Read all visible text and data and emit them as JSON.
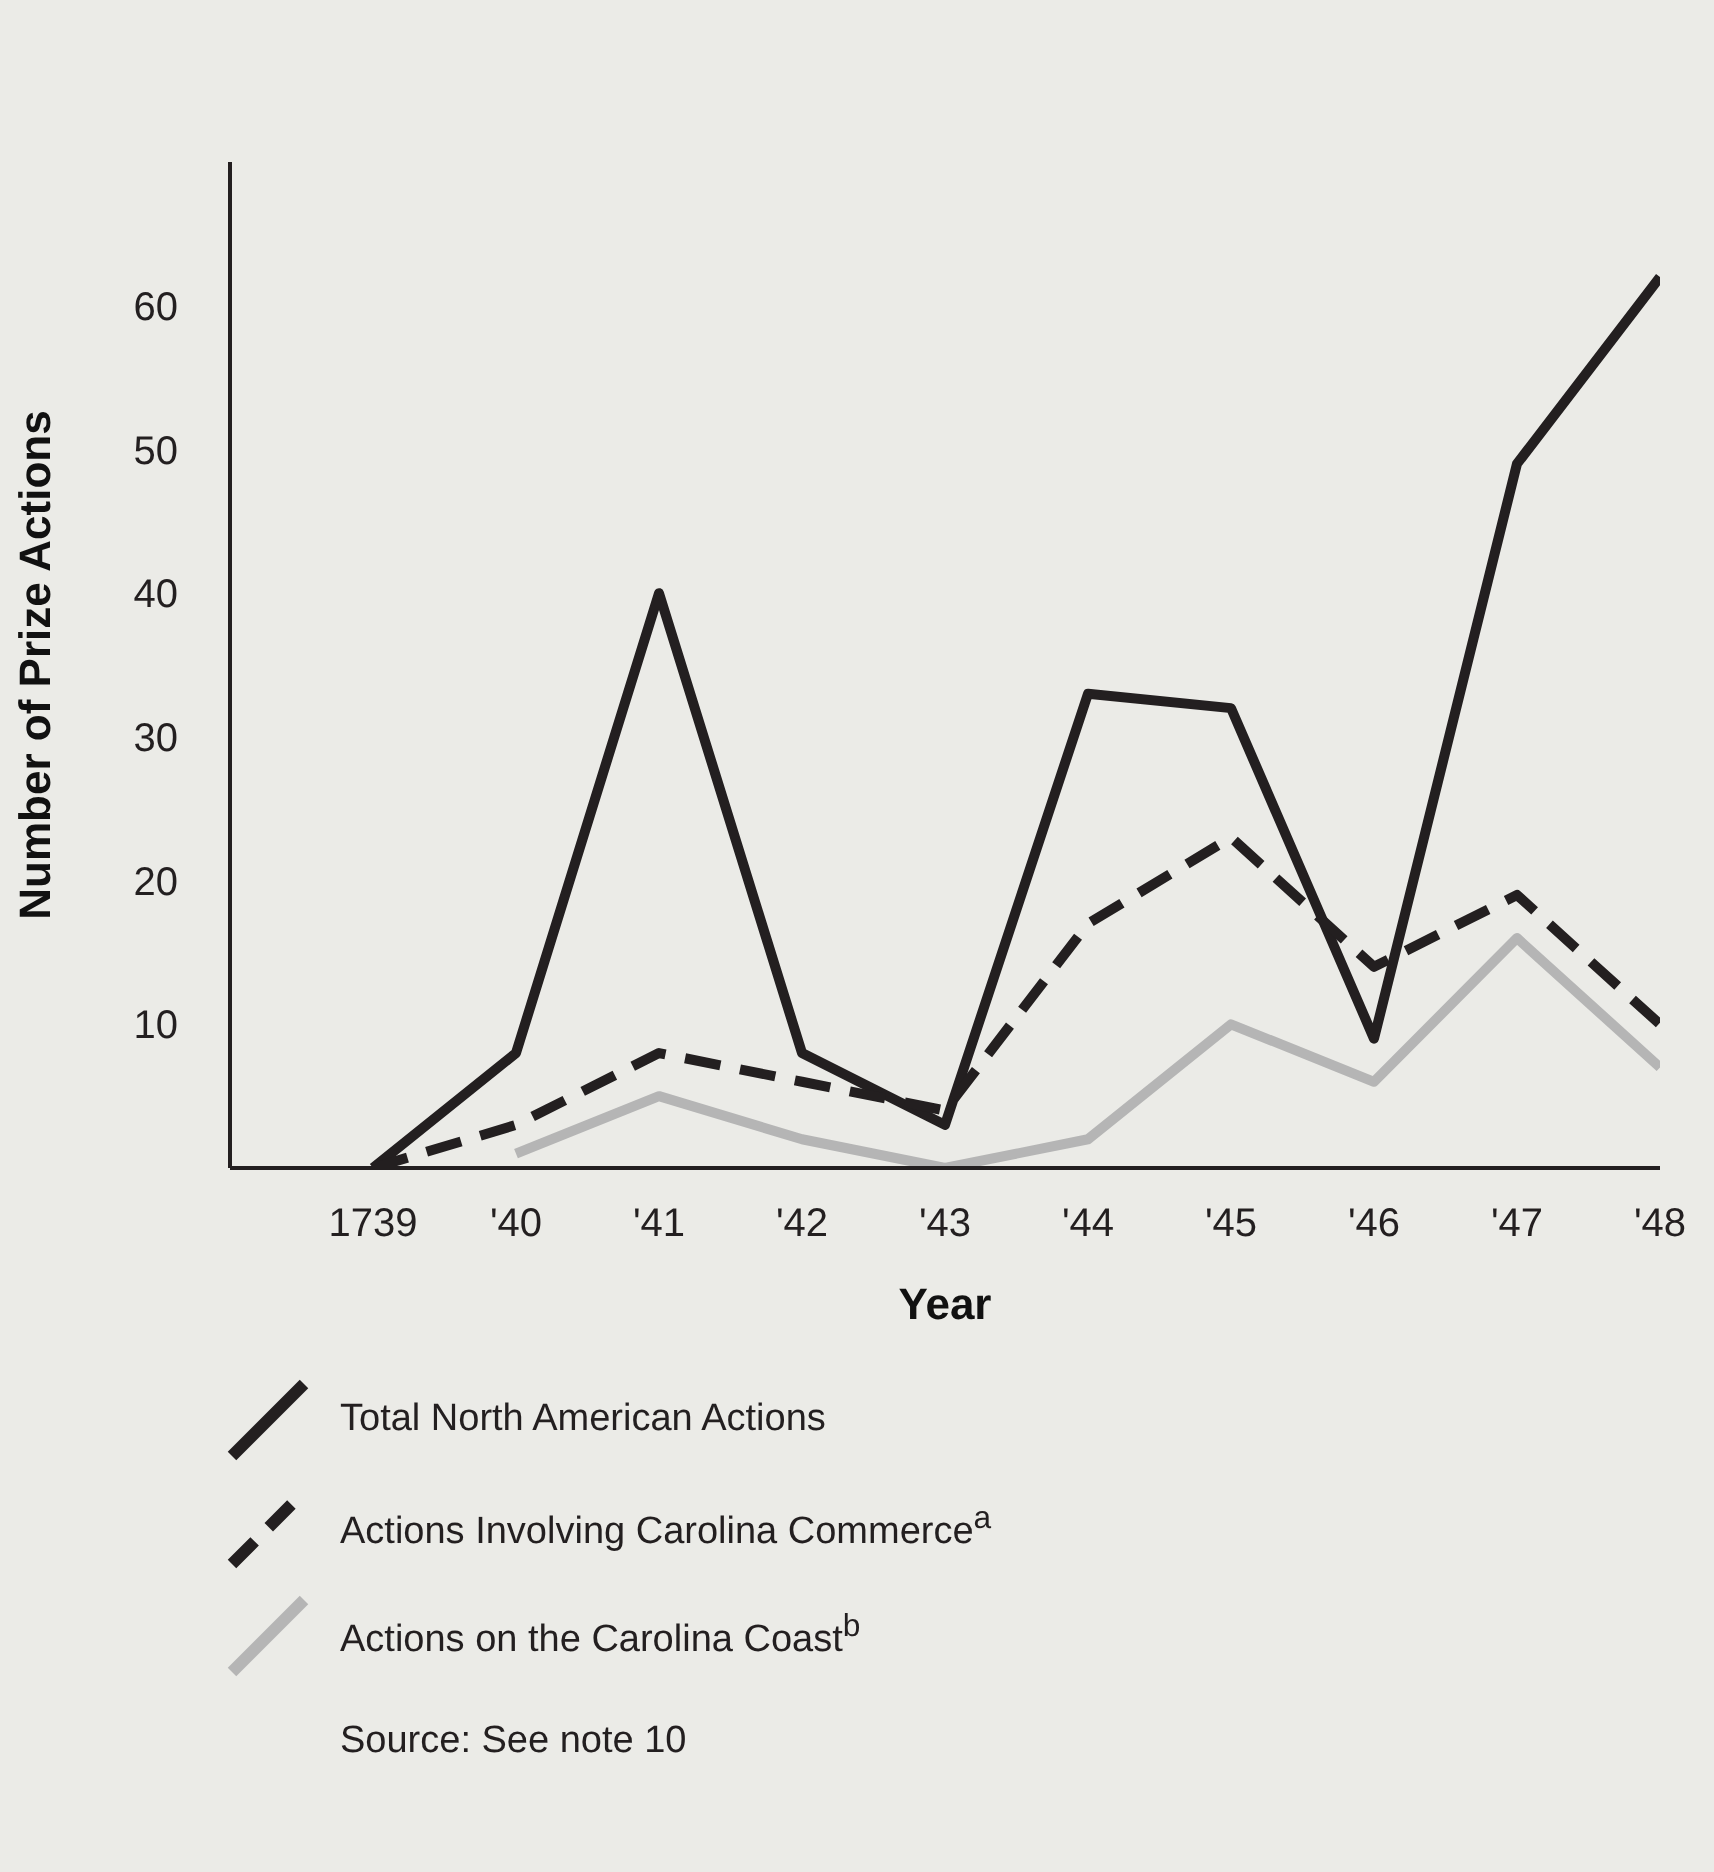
{
  "chart_data": {
    "type": "line",
    "xlabel": "Year",
    "ylabel": "Number of Prize Actions",
    "categories": [
      "1739",
      "'40",
      "'41",
      "'42",
      "'43",
      "'44",
      "'45",
      "'46",
      "'47",
      "'48"
    ],
    "series": [
      {
        "name": "Total North American Actions",
        "color": "#231f20",
        "line_style": "solid",
        "values": [
          0,
          8,
          40,
          8,
          3,
          33,
          32,
          9,
          49,
          62
        ]
      },
      {
        "name": "Actions Involving Carolina Commerce$^{a}$",
        "color": "#231f20",
        "line_style": "dashed",
        "values": [
          0,
          3,
          8,
          6,
          4,
          17,
          23,
          14,
          19,
          10
        ]
      },
      {
        "name": "Actions on the Carolina Coast$^{b}$",
        "color": "#b5b5b5",
        "line_style": "solid",
        "values": [
          null,
          1,
          5,
          2,
          0,
          2,
          10,
          6,
          16,
          7
        ]
      }
    ],
    "ylim": [
      0,
      70
    ],
    "yticks": [
      10,
      20,
      30,
      40,
      50,
      60
    ],
    "legend": "bottom",
    "annotations": [
      "Source: See note 10"
    ]
  }
}
